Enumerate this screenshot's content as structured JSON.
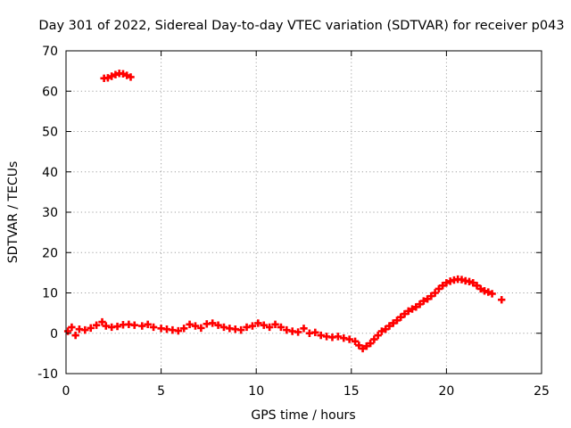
{
  "chart_data": {
    "type": "scatter",
    "title": "Day 301 of 2022, Sidereal Day-to-day VTEC variation (SDTVAR) for receiver p043",
    "xlabel": "GPS time / hours",
    "ylabel": "SDTVAR / TECUs",
    "xlim": [
      0,
      25
    ],
    "ylim": [
      -10,
      70
    ],
    "xticks": [
      0,
      5,
      10,
      15,
      20,
      25
    ],
    "yticks": [
      -10,
      0,
      10,
      20,
      30,
      40,
      50,
      60,
      70
    ],
    "grid": true,
    "marker": "+",
    "color": "#ff0000",
    "series": [
      {
        "name": "SDTVAR",
        "points": [
          [
            2.0,
            63.2
          ],
          [
            2.2,
            63.3
          ],
          [
            2.4,
            63.7
          ],
          [
            2.6,
            64.1
          ],
          [
            2.8,
            64.4
          ],
          [
            3.0,
            64.3
          ],
          [
            3.2,
            63.9
          ],
          [
            3.4,
            63.5
          ],
          [
            0.1,
            0.5
          ],
          [
            0.3,
            1.5
          ],
          [
            0.5,
            -0.5
          ],
          [
            0.7,
            1.0
          ],
          [
            1.0,
            0.8
          ],
          [
            1.3,
            1.3
          ],
          [
            1.6,
            2.0
          ],
          [
            1.9,
            2.8
          ],
          [
            2.1,
            1.8
          ],
          [
            2.4,
            1.5
          ],
          [
            2.7,
            1.7
          ],
          [
            3.0,
            2.1
          ],
          [
            3.3,
            2.2
          ],
          [
            3.6,
            2.0
          ],
          [
            4.0,
            1.8
          ],
          [
            4.3,
            2.2
          ],
          [
            4.6,
            1.5
          ],
          [
            5.0,
            1.2
          ],
          [
            5.3,
            1.0
          ],
          [
            5.6,
            0.8
          ],
          [
            5.9,
            0.6
          ],
          [
            6.2,
            1.2
          ],
          [
            6.5,
            2.2
          ],
          [
            6.8,
            1.8
          ],
          [
            7.1,
            1.3
          ],
          [
            7.4,
            2.3
          ],
          [
            7.7,
            2.5
          ],
          [
            8.0,
            2.0
          ],
          [
            8.3,
            1.5
          ],
          [
            8.6,
            1.2
          ],
          [
            8.9,
            1.0
          ],
          [
            9.2,
            0.8
          ],
          [
            9.5,
            1.5
          ],
          [
            9.8,
            1.8
          ],
          [
            10.1,
            2.5
          ],
          [
            10.4,
            2.0
          ],
          [
            10.7,
            1.5
          ],
          [
            11.0,
            2.2
          ],
          [
            11.3,
            1.5
          ],
          [
            11.6,
            0.8
          ],
          [
            11.9,
            0.5
          ],
          [
            12.2,
            0.3
          ],
          [
            12.5,
            1.2
          ],
          [
            12.8,
            0.0
          ],
          [
            13.1,
            0.2
          ],
          [
            13.4,
            -0.5
          ],
          [
            13.7,
            -0.8
          ],
          [
            14.0,
            -1.0
          ],
          [
            14.3,
            -0.8
          ],
          [
            14.6,
            -1.2
          ],
          [
            14.9,
            -1.5
          ],
          [
            15.2,
            -2.0
          ],
          [
            15.4,
            -3.0
          ],
          [
            15.6,
            -3.8
          ],
          [
            15.8,
            -3.2
          ],
          [
            16.0,
            -2.5
          ],
          [
            16.2,
            -1.5
          ],
          [
            16.4,
            -0.5
          ],
          [
            16.6,
            0.5
          ],
          [
            16.8,
            1.0
          ],
          [
            17.0,
            1.8
          ],
          [
            17.2,
            2.5
          ],
          [
            17.4,
            3.2
          ],
          [
            17.6,
            4.0
          ],
          [
            17.8,
            4.8
          ],
          [
            18.0,
            5.5
          ],
          [
            18.2,
            6.0
          ],
          [
            18.4,
            6.5
          ],
          [
            18.6,
            7.2
          ],
          [
            18.8,
            8.0
          ],
          [
            19.0,
            8.5
          ],
          [
            19.2,
            9.2
          ],
          [
            19.4,
            10.0
          ],
          [
            19.6,
            11.0
          ],
          [
            19.8,
            11.8
          ],
          [
            20.0,
            12.5
          ],
          [
            20.2,
            12.9
          ],
          [
            20.4,
            13.2
          ],
          [
            20.6,
            13.4
          ],
          [
            20.8,
            13.3
          ],
          [
            21.0,
            13.0
          ],
          [
            21.2,
            12.8
          ],
          [
            21.4,
            12.5
          ],
          [
            21.6,
            11.8
          ],
          [
            21.8,
            11.0
          ],
          [
            22.0,
            10.5
          ],
          [
            22.2,
            10.2
          ],
          [
            22.4,
            9.8
          ],
          [
            22.9,
            8.3
          ]
        ]
      }
    ]
  }
}
